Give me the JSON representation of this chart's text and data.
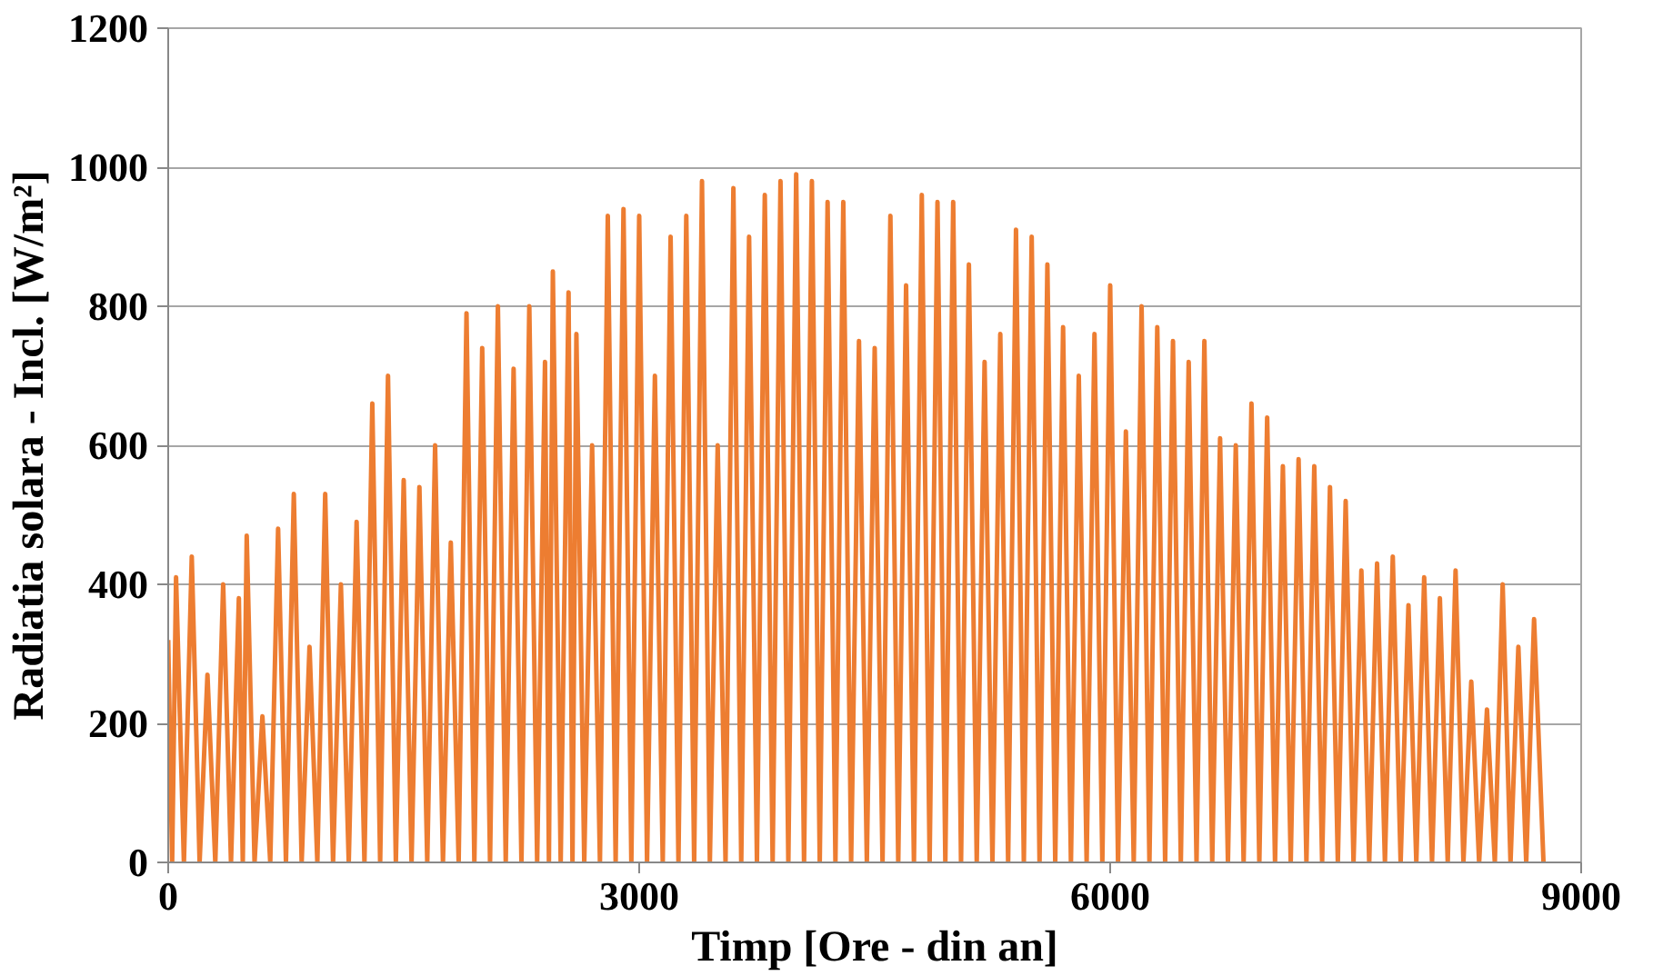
{
  "chart_data": {
    "type": "line",
    "xlabel": "Timp [Ore - din an]",
    "ylabel": "Radiatia solara - Incl. [W/m²]",
    "x": [
      0,
      25,
      50,
      100,
      150,
      200,
      250,
      300,
      350,
      400,
      450,
      475,
      500,
      550,
      600,
      650,
      700,
      750,
      800,
      850,
      900,
      950,
      1000,
      1050,
      1100,
      1150,
      1200,
      1250,
      1300,
      1350,
      1400,
      1450,
      1500,
      1550,
      1600,
      1650,
      1700,
      1750,
      1800,
      1850,
      1900,
      1950,
      2000,
      2050,
      2100,
      2150,
      2200,
      2250,
      2300,
      2350,
      2400,
      2425,
      2450,
      2500,
      2550,
      2575,
      2600,
      2650,
      2700,
      2750,
      2800,
      2850,
      2900,
      2950,
      3000,
      3050,
      3100,
      3150,
      3200,
      3250,
      3300,
      3350,
      3400,
      3450,
      3500,
      3550,
      3600,
      3650,
      3700,
      3750,
      3800,
      3850,
      3900,
      3950,
      4000,
      4050,
      4100,
      4150,
      4200,
      4250,
      4300,
      4350,
      4400,
      4450,
      4500,
      4550,
      4600,
      4650,
      4700,
      4750,
      4800,
      4850,
      4900,
      4950,
      5000,
      5050,
      5100,
      5150,
      5200,
      5250,
      5300,
      5350,
      5400,
      5450,
      5500,
      5550,
      5600,
      5650,
      5700,
      5750,
      5800,
      5850,
      5900,
      5950,
      6000,
      6050,
      6100,
      6150,
      6200,
      6250,
      6300,
      6350,
      6400,
      6450,
      6500,
      6550,
      6600,
      6650,
      6700,
      6750,
      6800,
      6850,
      6900,
      6950,
      7000,
      7050,
      7100,
      7150,
      7200,
      7250,
      7300,
      7350,
      7400,
      7450,
      7500,
      7550,
      7600,
      7650,
      7700,
      7750,
      7800,
      7850,
      7900,
      7950,
      8000,
      8050,
      8100,
      8150,
      8200,
      8250,
      8300,
      8350,
      8400,
      8450,
      8500,
      8550,
      8600,
      8650,
      8700,
      8760
    ],
    "series": [
      {
        "color": "#ed7d31",
        "values": [
          320,
          0,
          410,
          0,
          440,
          0,
          270,
          0,
          400,
          0,
          380,
          0,
          470,
          0,
          210,
          0,
          480,
          0,
          530,
          0,
          310,
          0,
          530,
          0,
          400,
          0,
          490,
          0,
          660,
          0,
          700,
          0,
          550,
          0,
          540,
          0,
          600,
          0,
          460,
          0,
          790,
          0,
          740,
          0,
          800,
          0,
          710,
          0,
          800,
          0,
          720,
          0,
          850,
          0,
          820,
          0,
          760,
          0,
          600,
          0,
          930,
          0,
          940,
          0,
          930,
          0,
          700,
          0,
          900,
          0,
          930,
          0,
          980,
          0,
          600,
          0,
          970,
          0,
          900,
          0,
          960,
          0,
          980,
          0,
          990,
          0,
          980,
          0,
          950,
          0,
          950,
          0,
          750,
          0,
          740,
          0,
          930,
          0,
          830,
          0,
          960,
          0,
          950,
          0,
          950,
          0,
          860,
          0,
          720,
          0,
          760,
          0,
          910,
          0,
          900,
          0,
          860,
          0,
          770,
          0,
          700,
          0,
          760,
          0,
          830,
          0,
          620,
          0,
          800,
          0,
          770,
          0,
          750,
          0,
          720,
          0,
          750,
          0,
          610,
          0,
          600,
          0,
          660,
          0,
          640,
          0,
          570,
          0,
          580,
          0,
          570,
          0,
          540,
          0,
          520,
          0,
          420,
          0,
          430,
          0,
          440,
          0,
          370,
          0,
          410,
          0,
          380,
          0,
          420,
          0,
          260,
          0,
          220,
          0,
          400,
          0,
          310,
          0,
          350,
          0
        ]
      }
    ],
    "xlim": [
      0,
      9000
    ],
    "xticks": [
      0,
      3000,
      6000,
      9000
    ],
    "ylim": [
      0,
      1200
    ],
    "yticks": [
      0,
      200,
      400,
      600,
      800,
      1000,
      1200
    ],
    "grid": "y",
    "marker": "none",
    "line_style": "solid"
  }
}
